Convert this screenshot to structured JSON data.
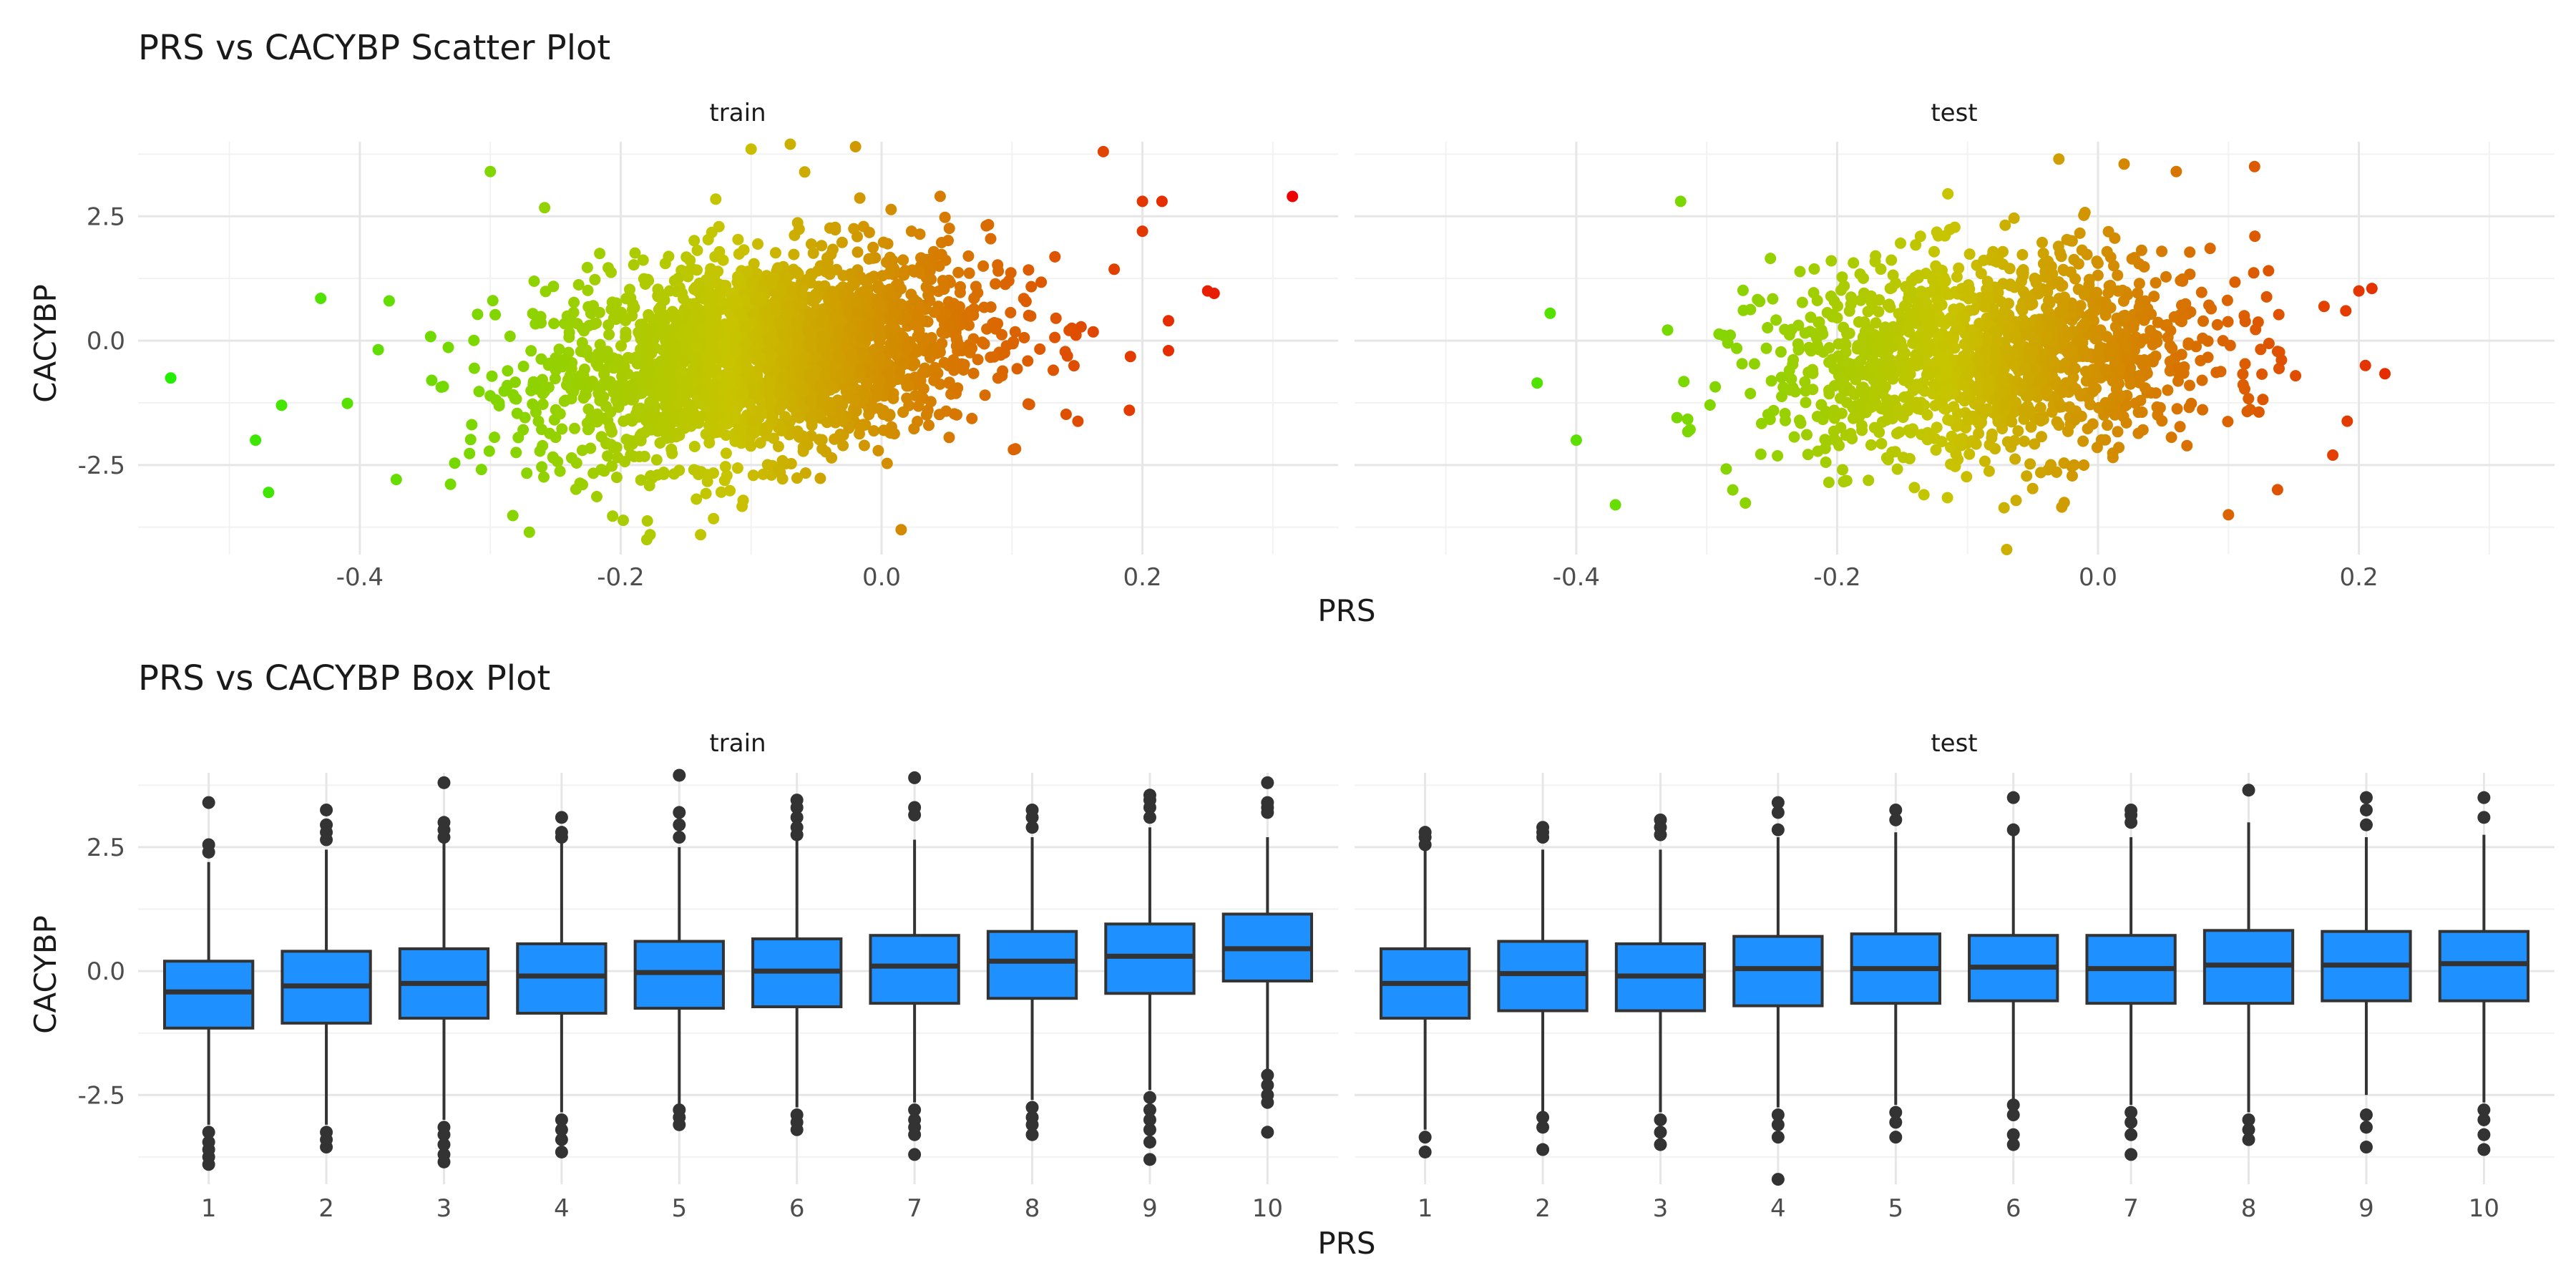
{
  "figure": {
    "scatter_title": "PRS vs CACYBP Scatter Plot",
    "box_title": "PRS vs CACYBP Box Plot",
    "xlabel": "PRS",
    "ylabel": "CACYBP",
    "panel_labels": [
      "train",
      "test"
    ]
  },
  "chart_data": [
    {
      "type": "scatter",
      "title": "PRS vs CACYBP Scatter Plot",
      "xlabel": "PRS",
      "ylabel": "CACYBP",
      "xlim": [
        -0.57,
        0.35
      ],
      "ylim": [
        -4.3,
        4.0
      ],
      "x_ticks": [
        -0.4,
        -0.2,
        0.0,
        0.2
      ],
      "x_tick_labels": [
        "-0.4",
        "-0.2",
        "0.0",
        "0.2"
      ],
      "y_ticks": [
        -2.5,
        0.0,
        2.5
      ],
      "y_tick_labels": [
        "-2.5",
        "0.0",
        "2.5"
      ],
      "grid": true,
      "color_scale": {
        "low": "#22ee00",
        "mid": "#c8c400",
        "high": "#ee0000"
      },
      "panels": [
        {
          "name": "train",
          "point_cloud": {
            "x_mean": -0.09,
            "x_sd": 0.085,
            "y_mean": -0.3,
            "y_sd": 1.0,
            "slope": 3.5,
            "n_drawn": 2400
          },
          "points": [
            {
              "x": -0.545,
              "y": -0.75
            },
            {
              "x": -0.48,
              "y": -2.0
            },
            {
              "x": -0.47,
              "y": -3.05
            },
            {
              "x": -0.46,
              "y": -1.3
            },
            {
              "x": -0.43,
              "y": 0.85
            },
            {
              "x": -0.3,
              "y": 3.4
            },
            {
              "x": -0.1,
              "y": 3.85
            },
            {
              "x": -0.07,
              "y": 3.95
            },
            {
              "x": -0.02,
              "y": 3.9
            },
            {
              "x": 0.015,
              "y": -3.8
            },
            {
              "x": -0.18,
              "y": -4.0
            },
            {
              "x": -0.27,
              "y": -3.85
            },
            {
              "x": 0.17,
              "y": 3.8
            },
            {
              "x": 0.2,
              "y": 2.8
            },
            {
              "x": 0.215,
              "y": 2.8
            },
            {
              "x": 0.25,
              "y": 1.0
            },
            {
              "x": 0.255,
              "y": 0.95
            },
            {
              "x": 0.315,
              "y": 2.9
            },
            {
              "x": 0.22,
              "y": -0.2
            },
            {
              "x": 0.19,
              "y": -1.4
            },
            {
              "x": 0.2,
              "y": 2.2
            },
            {
              "x": 0.22,
              "y": 0.4
            }
          ]
        },
        {
          "name": "test",
          "point_cloud": {
            "x_mean": -0.08,
            "x_sd": 0.085,
            "y_mean": -0.3,
            "y_sd": 1.0,
            "slope": 1.5,
            "n_drawn": 1500
          },
          "points": [
            {
              "x": -0.43,
              "y": -0.85
            },
            {
              "x": -0.42,
              "y": 0.55
            },
            {
              "x": -0.4,
              "y": -2.0
            },
            {
              "x": -0.37,
              "y": -3.3
            },
            {
              "x": -0.32,
              "y": 2.8
            },
            {
              "x": -0.28,
              "y": -3.0
            },
            {
              "x": -0.07,
              "y": -4.2
            },
            {
              "x": -0.03,
              "y": 3.65
            },
            {
              "x": 0.02,
              "y": 3.55
            },
            {
              "x": 0.06,
              "y": 3.4
            },
            {
              "x": 0.12,
              "y": 3.5
            },
            {
              "x": 0.18,
              "y": -2.3
            },
            {
              "x": 0.2,
              "y": 1.0
            },
            {
              "x": 0.21,
              "y": 1.05
            },
            {
              "x": 0.205,
              "y": -0.5
            },
            {
              "x": 0.19,
              "y": 0.6
            },
            {
              "x": 0.1,
              "y": -3.5
            }
          ]
        }
      ]
    },
    {
      "type": "box",
      "title": "PRS vs CACYBP Box Plot",
      "xlabel": "PRS",
      "ylabel": "CACYBP",
      "ylim": [
        -4.3,
        4.0
      ],
      "categories": [
        "1",
        "2",
        "3",
        "4",
        "5",
        "6",
        "7",
        "8",
        "9",
        "10"
      ],
      "y_ticks": [
        -2.5,
        0.0,
        2.5
      ],
      "y_tick_labels": [
        "-2.5",
        "0.0",
        "2.5"
      ],
      "grid": true,
      "box_color": "#1e90ff",
      "panels": [
        {
          "name": "train",
          "boxes": [
            {
              "q1": -1.15,
              "median": -0.42,
              "q3": 0.2,
              "wmin": -3.1,
              "wmax": 2.2,
              "outliers": [
                3.4,
                2.55,
                2.4,
                -3.25,
                -3.45,
                -3.6,
                -3.75,
                -3.9
              ]
            },
            {
              "q1": -1.05,
              "median": -0.3,
              "q3": 0.4,
              "wmin": -3.1,
              "wmax": 2.45,
              "outliers": [
                3.25,
                2.95,
                2.8,
                2.65,
                -3.25,
                -3.4,
                -3.55
              ]
            },
            {
              "q1": -0.95,
              "median": -0.25,
              "q3": 0.45,
              "wmin": -3.0,
              "wmax": 2.6,
              "outliers": [
                3.8,
                3.0,
                2.85,
                2.7,
                -3.15,
                -3.3,
                -3.5,
                -3.7,
                -3.85
              ]
            },
            {
              "q1": -0.85,
              "median": -0.1,
              "q3": 0.55,
              "wmin": -2.85,
              "wmax": 2.6,
              "outliers": [
                3.1,
                2.8,
                2.7,
                -3.0,
                -3.2,
                -3.4,
                -3.65
              ]
            },
            {
              "q1": -0.75,
              "median": -0.03,
              "q3": 0.6,
              "wmin": -2.7,
              "wmax": 2.5,
              "outliers": [
                3.95,
                3.2,
                2.95,
                2.7,
                -2.8,
                -2.95,
                -3.1
              ]
            },
            {
              "q1": -0.72,
              "median": 0.0,
              "q3": 0.65,
              "wmin": -2.75,
              "wmax": 2.65,
              "outliers": [
                3.45,
                3.3,
                3.1,
                2.9,
                2.75,
                -2.9,
                -3.05,
                -3.2
              ]
            },
            {
              "q1": -0.65,
              "median": 0.1,
              "q3": 0.72,
              "wmin": -2.65,
              "wmax": 2.65,
              "outliers": [
                3.9,
                3.3,
                3.15,
                -2.8,
                -3.0,
                -3.15,
                -3.3,
                -3.7
              ]
            },
            {
              "q1": -0.55,
              "median": 0.2,
              "q3": 0.8,
              "wmin": -2.6,
              "wmax": 2.7,
              "outliers": [
                3.25,
                3.1,
                2.9,
                -2.75,
                -2.95,
                -3.1,
                -3.3
              ]
            },
            {
              "q1": -0.45,
              "median": 0.3,
              "q3": 0.95,
              "wmin": -2.4,
              "wmax": 2.9,
              "outliers": [
                3.55,
                3.45,
                3.3,
                3.1,
                -2.55,
                -2.8,
                -3.0,
                -3.2,
                -3.45,
                -3.8
              ]
            },
            {
              "q1": -0.2,
              "median": 0.45,
              "q3": 1.15,
              "wmin": -2.0,
              "wmax": 2.7,
              "outliers": [
                3.8,
                3.4,
                3.3,
                3.2,
                -2.1,
                -2.3,
                -2.5,
                -2.65,
                -3.25
              ]
            }
          ]
        },
        {
          "name": "test",
          "boxes": [
            {
              "q1": -0.95,
              "median": -0.25,
              "q3": 0.45,
              "wmin": -3.2,
              "wmax": 2.5,
              "outliers": [
                2.8,
                2.7,
                2.55,
                -3.35,
                -3.65
              ]
            },
            {
              "q1": -0.8,
              "median": -0.05,
              "q3": 0.6,
              "wmin": -2.85,
              "wmax": 2.45,
              "outliers": [
                2.9,
                2.8,
                2.7,
                -2.95,
                -3.15,
                -3.6
              ]
            },
            {
              "q1": -0.8,
              "median": -0.1,
              "q3": 0.55,
              "wmin": -2.85,
              "wmax": 2.45,
              "outliers": [
                3.05,
                2.9,
                2.75,
                -3.0,
                -3.25,
                -3.5
              ]
            },
            {
              "q1": -0.7,
              "median": 0.05,
              "q3": 0.7,
              "wmin": -2.75,
              "wmax": 2.7,
              "outliers": [
                3.4,
                3.2,
                2.85,
                -2.9,
                -3.1,
                -3.35,
                -4.2
              ]
            },
            {
              "q1": -0.65,
              "median": 0.05,
              "q3": 0.75,
              "wmin": -2.7,
              "wmax": 2.8,
              "outliers": [
                3.25,
                3.05,
                -2.85,
                -3.05,
                -3.35
              ]
            },
            {
              "q1": -0.6,
              "median": 0.08,
              "q3": 0.72,
              "wmin": -2.6,
              "wmax": 2.75,
              "outliers": [
                3.5,
                2.85,
                -2.7,
                -2.9,
                -3.3,
                -3.5
              ]
            },
            {
              "q1": -0.65,
              "median": 0.05,
              "q3": 0.72,
              "wmin": -2.7,
              "wmax": 2.7,
              "outliers": [
                3.25,
                3.15,
                3.0,
                -2.85,
                -3.05,
                -3.3,
                -3.7
              ]
            },
            {
              "q1": -0.65,
              "median": 0.12,
              "q3": 0.82,
              "wmin": -2.85,
              "wmax": 3.0,
              "outliers": [
                3.65,
                -3.0,
                -3.2,
                -3.4
              ]
            },
            {
              "q1": -0.6,
              "median": 0.12,
              "q3": 0.8,
              "wmin": -2.5,
              "wmax": 2.7,
              "outliers": [
                3.5,
                3.25,
                2.95,
                -2.9,
                -3.15,
                -3.55
              ]
            },
            {
              "q1": -0.6,
              "median": 0.15,
              "q3": 0.8,
              "wmin": -2.65,
              "wmax": 2.75,
              "outliers": [
                3.5,
                3.1,
                -2.8,
                -3.0,
                -3.3,
                -3.6
              ]
            }
          ]
        }
      ]
    }
  ]
}
